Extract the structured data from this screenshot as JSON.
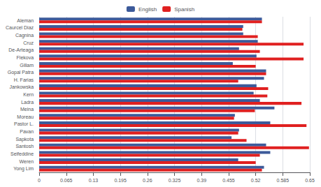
{
  "chart_data": {
    "type": "bar",
    "orientation": "horizontal",
    "categories": [
      "Aleman",
      "Caurcel Diaz",
      "Cagnina",
      "Cruz",
      "De-Arteaga",
      "Flekova",
      "Gillam",
      "Gopal Patra",
      "H. Farias",
      "Jankowska",
      "Kern",
      "Ladra",
      "Meina",
      "Moreau",
      "Pastor L.",
      "Pavan",
      "Sapkota",
      "Santosh",
      "Seifeddine",
      "Weren",
      "Yong Lim"
    ],
    "series": [
      {
        "name": "English",
        "color": "#3c5a9a",
        "values": [
          0.535,
          0.49,
          0.49,
          0.525,
          0.48,
          0.522,
          0.465,
          0.545,
          0.54,
          0.522,
          0.515,
          0.53,
          0.565,
          0.47,
          0.555,
          0.48,
          0.462,
          0.545,
          0.555,
          0.478,
          0.54
        ]
      },
      {
        "name": "Spanish",
        "color": "#e02020",
        "values": [
          0.535,
          0.488,
          0.525,
          0.635,
          0.53,
          0.635,
          0.52,
          0.545,
          0.478,
          0.55,
          0.548,
          0.63,
          0.518,
          0.468,
          0.642,
          0.478,
          0.498,
          0.648,
          0.53,
          0.52,
          0.535
        ]
      }
    ],
    "xlim": [
      0,
      0.65
    ],
    "xticks": [
      0,
      0.065,
      0.13,
      0.195,
      0.26,
      0.325,
      0.39,
      0.455,
      0.52,
      0.585,
      0.65
    ],
    "grid": true,
    "legend": "top"
  }
}
